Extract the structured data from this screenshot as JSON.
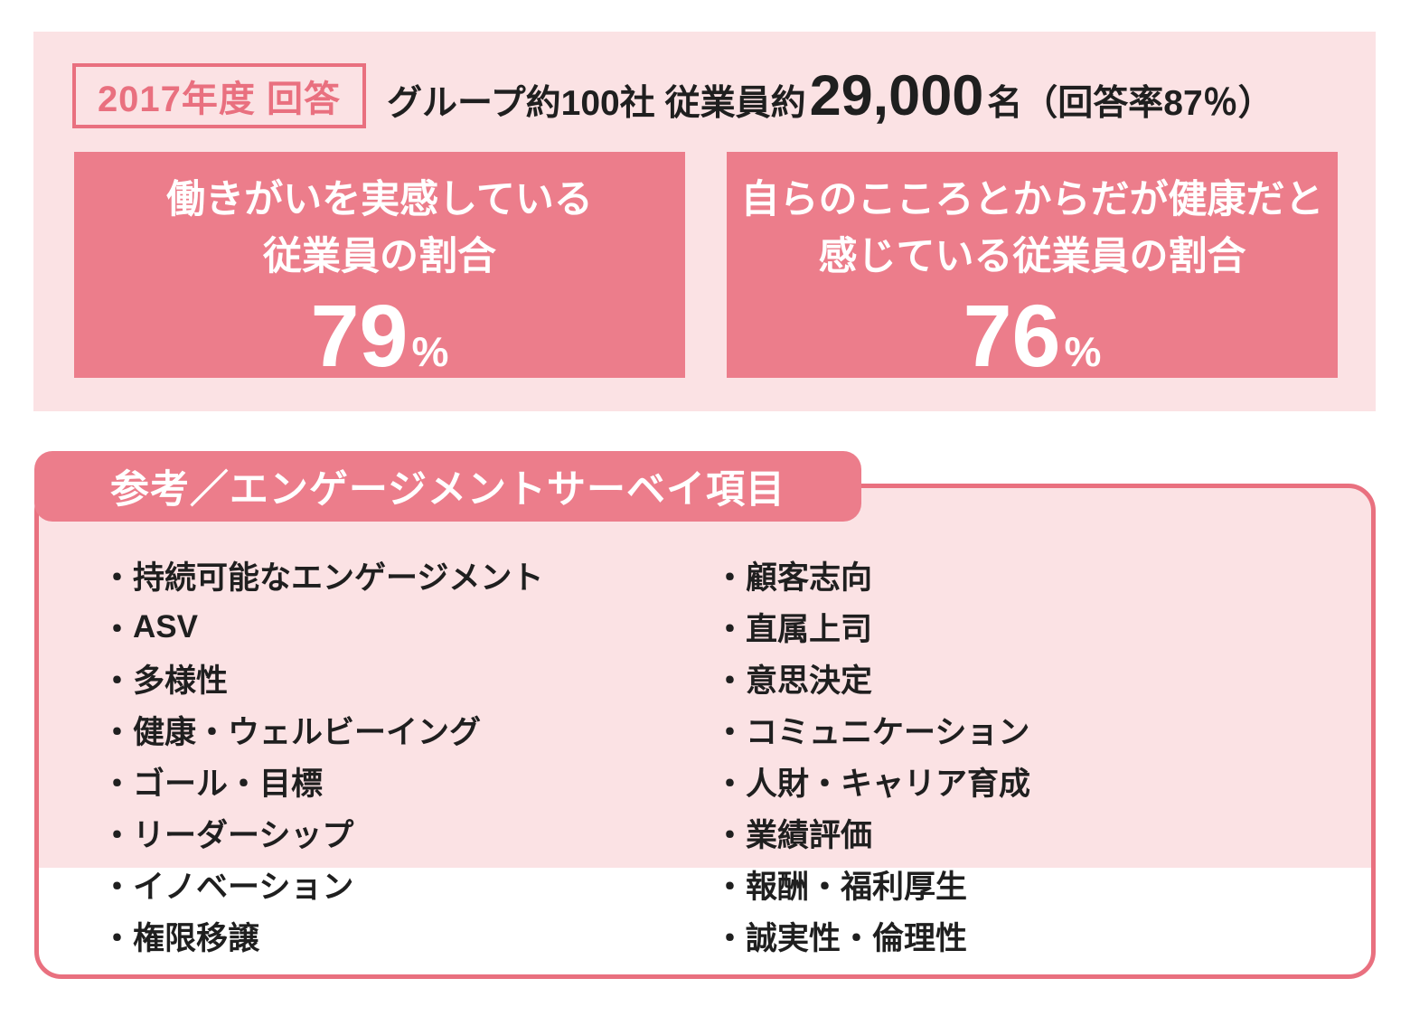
{
  "colors": {
    "accent_fill": "#EC7D8B",
    "accent_border": "#E9707F",
    "panel_bg": "#FBE2E4",
    "text": "#1F1F1F",
    "inverse_text": "#FFFFFF"
  },
  "survey_summary": {
    "year_label": "2017年度 回答",
    "headline": {
      "prefix": "グループ約100社 従業員約",
      "big_number": "29,000",
      "suffix": "名（回答率87％）"
    },
    "stat_cards": [
      {
        "title_line1": "働きがいを実感している",
        "title_line2": "従業員の割合",
        "value": "79",
        "unit": "%"
      },
      {
        "title_line1": "自らのこころとからだが健康だと",
        "title_line2": "感じている従業員の割合",
        "value": "76",
        "unit": "%"
      }
    ]
  },
  "reference": {
    "badge_label": "参考／エンゲージメントサーベイ項目",
    "bullet": "・",
    "left_items": [
      "持続可能なエンゲージメント",
      "ASV",
      "多様性",
      "健康・ウェルビーイング",
      "ゴール・目標",
      "リーダーシップ",
      "イノベーション",
      "権限移譲"
    ],
    "right_items": [
      "顧客志向",
      "直属上司",
      "意思決定",
      "コミュニケーション",
      "人財・キャリア育成",
      "業績評価",
      "報酬・福利厚生",
      "誠実性・倫理性"
    ]
  }
}
